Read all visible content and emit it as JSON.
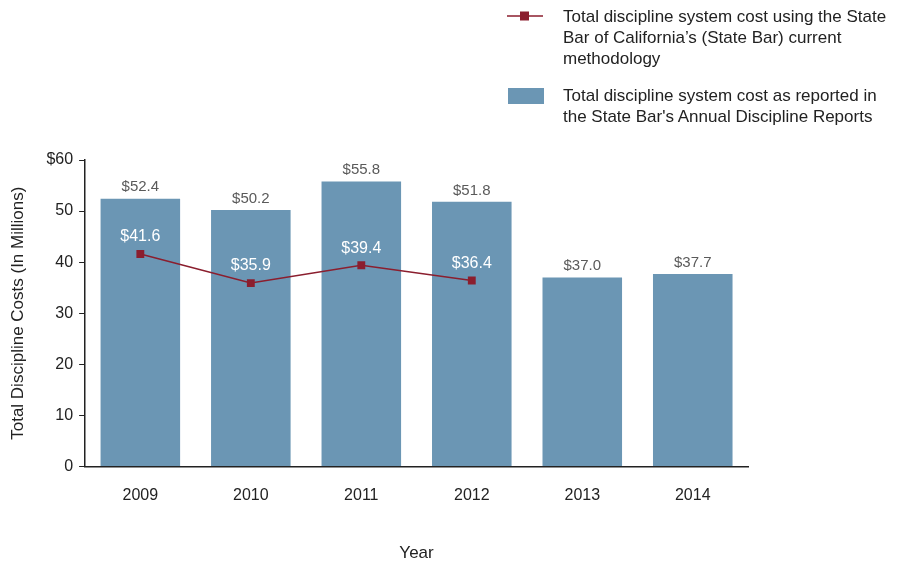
{
  "chart_data": {
    "type": "bar",
    "categories": [
      "2009",
      "2010",
      "2011",
      "2012",
      "2013",
      "2014"
    ],
    "series": [
      {
        "name": "Total discipline system cost using the State Bar of California’s (State Bar) current methodology",
        "type": "line",
        "color": "#8b1e2e",
        "marker": "square",
        "line_style": "solid",
        "values": [
          41.6,
          35.9,
          39.4,
          36.4,
          null,
          null
        ],
        "value_labels": [
          "$41.6",
          "$35.9",
          "$39.4",
          "$36.4",
          null,
          null
        ]
      },
      {
        "name": "Total discipline system cost as reported in the State Bar's Annual Discipline Reports",
        "type": "bar",
        "color": "#6b96b4",
        "values": [
          52.4,
          50.2,
          55.8,
          51.8,
          37.0,
          37.7
        ],
        "value_labels": [
          "$52.4",
          "$50.2",
          "$55.8",
          "$51.8",
          "$37.0",
          "$37.7"
        ]
      }
    ],
    "xlabel": "Year",
    "ylabel": "Total Discipline Costs (In Millions)",
    "ylim": [
      0,
      60
    ],
    "yticks": [
      0,
      10,
      20,
      30,
      40,
      50,
      {
        "value": 60,
        "label": "$60"
      }
    ],
    "grid": false,
    "legend": "top right",
    "data_labels": true
  }
}
